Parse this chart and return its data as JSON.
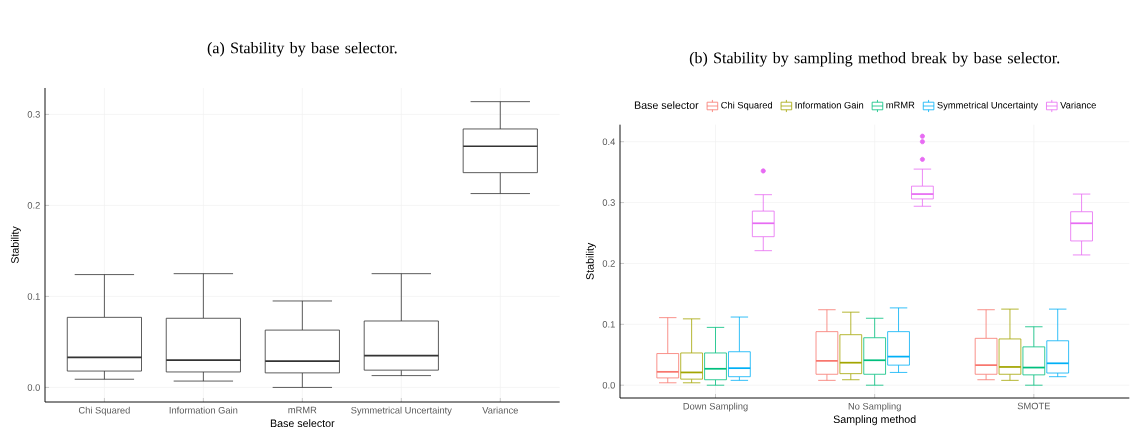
{
  "chart_data": [
    {
      "type": "box",
      "title": "(a) Stability by base selector.",
      "xlabel": "Base selector",
      "ylabel": "Stability",
      "categories": [
        "Chi Squared",
        "Information Gain",
        "mRMR",
        "Symmetrical Uncertainty",
        "Variance"
      ],
      "color": "#333333",
      "boxes": [
        {
          "low": 0.009,
          "q1": 0.018,
          "median": 0.033,
          "q3": 0.077,
          "high": 0.124
        },
        {
          "low": 0.007,
          "q1": 0.017,
          "median": 0.03,
          "q3": 0.076,
          "high": 0.125
        },
        {
          "low": 0.0,
          "q1": 0.016,
          "median": 0.029,
          "q3": 0.063,
          "high": 0.095
        },
        {
          "low": 0.013,
          "q1": 0.019,
          "median": 0.035,
          "q3": 0.073,
          "high": 0.125
        },
        {
          "low": 0.213,
          "q1": 0.236,
          "median": 0.265,
          "q3": 0.284,
          "high": 0.314
        }
      ],
      "ylim": [
        -0.016,
        0.329
      ],
      "yticks": [
        {
          "value": 0,
          "label": "0.0"
        },
        0.1,
        0.2,
        0.3
      ],
      "grid": true
    },
    {
      "type": "box",
      "title": "(b) Stability by sampling method break by base selector.",
      "xlabel": "Sampling method",
      "ylabel": "Stability",
      "categories": [
        "Down Sampling",
        "No Sampling",
        "SMOTE"
      ],
      "legend": "top",
      "legend_title": "Base selector",
      "series": [
        {
          "name": "Chi Squared",
          "color": "#f8766d",
          "boxes": [
            {
              "low": 0.004,
              "q1": 0.012,
              "median": 0.022,
              "q3": 0.052,
              "high": 0.111
            },
            {
              "low": 0.008,
              "q1": 0.018,
              "median": 0.04,
              "q3": 0.088,
              "high": 0.124
            },
            {
              "low": 0.009,
              "q1": 0.018,
              "median": 0.033,
              "q3": 0.077,
              "high": 0.124
            }
          ]
        },
        {
          "name": "Information Gain",
          "color": "#a3a500",
          "boxes": [
            {
              "low": 0.004,
              "q1": 0.01,
              "median": 0.021,
              "q3": 0.053,
              "high": 0.109
            },
            {
              "low": 0.009,
              "q1": 0.019,
              "median": 0.037,
              "q3": 0.083,
              "high": 0.12
            },
            {
              "low": 0.008,
              "q1": 0.018,
              "median": 0.03,
              "q3": 0.076,
              "high": 0.125
            }
          ]
        },
        {
          "name": "mRMR",
          "color": "#00bf7d",
          "boxes": [
            {
              "low": 0.0,
              "q1": 0.009,
              "median": 0.027,
              "q3": 0.053,
              "high": 0.095
            },
            {
              "low": 0.0,
              "q1": 0.018,
              "median": 0.041,
              "q3": 0.078,
              "high": 0.11
            },
            {
              "low": 0.0,
              "q1": 0.017,
              "median": 0.029,
              "q3": 0.063,
              "high": 0.096
            }
          ]
        },
        {
          "name": "Symmetrical Uncertainty",
          "color": "#00b0f6",
          "boxes": [
            {
              "low": 0.008,
              "q1": 0.014,
              "median": 0.028,
              "q3": 0.055,
              "high": 0.112
            },
            {
              "low": 0.021,
              "q1": 0.033,
              "median": 0.047,
              "q3": 0.088,
              "high": 0.127
            },
            {
              "low": 0.014,
              "q1": 0.02,
              "median": 0.036,
              "q3": 0.073,
              "high": 0.125
            }
          ]
        },
        {
          "name": "Variance",
          "color": "#e76bf3",
          "boxes": [
            {
              "low": 0.221,
              "q1": 0.244,
              "median": 0.266,
              "q3": 0.286,
              "high": 0.313,
              "outliers": [
                0.352
              ]
            },
            {
              "low": 0.294,
              "q1": 0.306,
              "median": 0.314,
              "q3": 0.327,
              "high": 0.355,
              "outliers": [
                0.409,
                0.4,
                0.371
              ]
            },
            {
              "low": 0.214,
              "q1": 0.237,
              "median": 0.266,
              "q3": 0.285,
              "high": 0.314
            }
          ]
        }
      ],
      "ylim": [
        -0.021,
        0.428
      ],
      "yticks": [
        {
          "value": 0,
          "label": "0.0"
        },
        0.1,
        0.2,
        0.3,
        0.4
      ],
      "grid": true
    }
  ]
}
